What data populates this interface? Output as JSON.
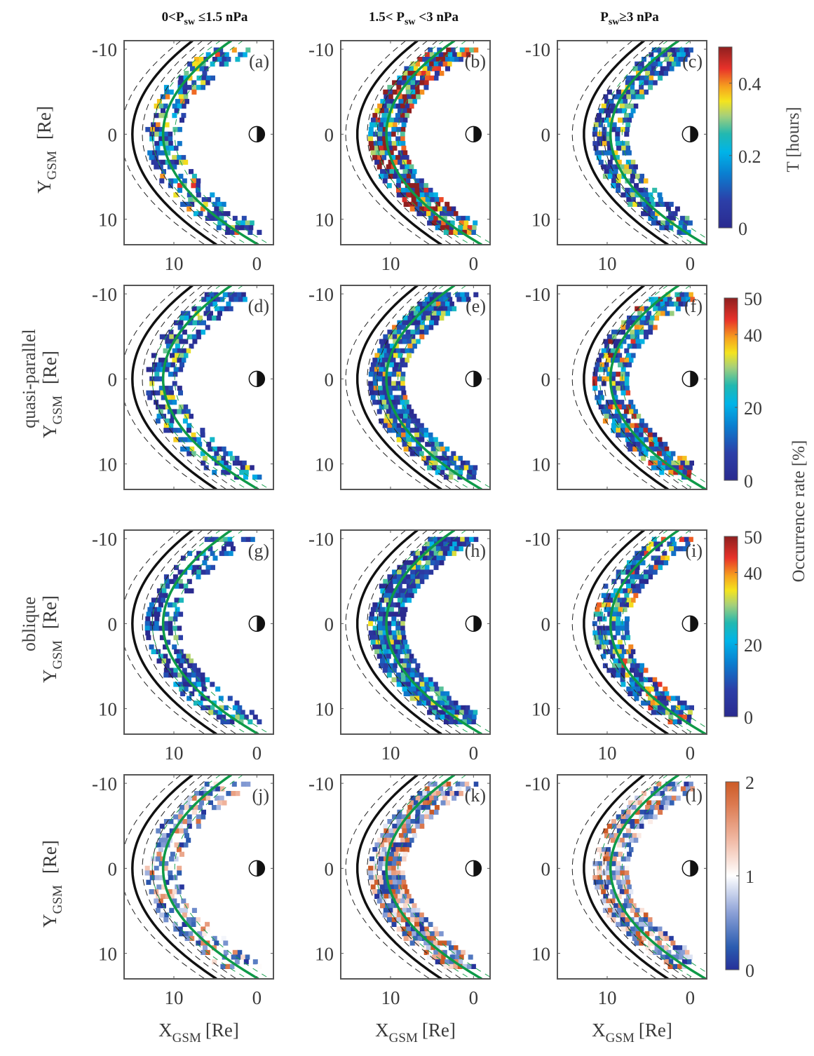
{
  "chart_data": {
    "type": "heatmap",
    "title": "",
    "column_titles": [
      "0<P_sw ≤1.5 nPa",
      "1.5< P_sw <3 nPa",
      "P_sw≥3 nPa"
    ],
    "row_labels": [
      "",
      "quasi-parallel",
      "oblique",
      ""
    ],
    "xlabel": "X_GSM [Re]",
    "ylabel": "Y_GSM [Re]",
    "xlim": [
      16,
      -2
    ],
    "ylim": [
      -11,
      13
    ],
    "xticks": [
      10,
      0
    ],
    "yticks": [
      -10,
      0,
      10
    ],
    "grid": false,
    "panel_letters": [
      "(a)",
      "(b)",
      "(c)",
      "(d)",
      "(e)",
      "(f)",
      "(g)",
      "(h)",
      "(i)",
      "(j)",
      "(k)",
      "(l)"
    ],
    "colorbars": [
      {
        "row": 0,
        "label": "T [hours]",
        "range": [
          0,
          0.5
        ],
        "ticks": [
          0,
          0.2,
          0.4
        ],
        "colormap": "jet"
      },
      {
        "row": 1,
        "label": "Occurrence rate [%]",
        "range": [
          0,
          50
        ],
        "ticks": [
          0,
          20,
          40,
          50
        ],
        "colormap": "jet"
      },
      {
        "row": 2,
        "label": "",
        "range": [
          0,
          50
        ],
        "ticks": [
          0,
          20,
          40,
          50
        ],
        "colormap": "jet"
      },
      {
        "row": 3,
        "label": "",
        "range": [
          0,
          2
        ],
        "ticks": [
          0,
          1,
          2
        ],
        "colormap": "diverging-blue-white-orange"
      }
    ],
    "overlays": {
      "bow_shock_solid_black": "solid black curve (bow shock model)",
      "magnetopause_solid_green": "solid green curve (magnetopause model)",
      "dashed_black": "dashed black curves",
      "dashed_green": "dashed green curves",
      "earth_symbol": "half-filled circle at origin (X=0,Y=0)"
    },
    "panels": [
      {
        "id": "a",
        "row": 0,
        "col": 0,
        "bow_shock_nose_x": 15.0,
        "mp_nose_x": 11.3,
        "level": 0.22,
        "density": 0.55
      },
      {
        "id": "b",
        "row": 0,
        "col": 1,
        "bow_shock_nose_x": 14.0,
        "mp_nose_x": 10.5,
        "level": 0.38,
        "density": 0.85
      },
      {
        "id": "c",
        "row": 0,
        "col": 2,
        "bow_shock_nose_x": 12.8,
        "mp_nose_x": 9.6,
        "level": 0.16,
        "density": 0.75
      },
      {
        "id": "d",
        "row": 1,
        "col": 0,
        "bow_shock_nose_x": 15.0,
        "mp_nose_x": 11.3,
        "level": 14,
        "density": 0.55
      },
      {
        "id": "e",
        "row": 1,
        "col": 1,
        "bow_shock_nose_x": 14.0,
        "mp_nose_x": 10.5,
        "level": 19,
        "density": 0.85
      },
      {
        "id": "f",
        "row": 1,
        "col": 2,
        "bow_shock_nose_x": 12.8,
        "mp_nose_x": 9.6,
        "level": 28,
        "density": 0.75
      },
      {
        "id": "g",
        "row": 2,
        "col": 0,
        "bow_shock_nose_x": 15.0,
        "mp_nose_x": 11.3,
        "level": 10,
        "density": 0.55
      },
      {
        "id": "h",
        "row": 2,
        "col": 1,
        "bow_shock_nose_x": 14.0,
        "mp_nose_x": 10.5,
        "level": 14,
        "density": 0.85
      },
      {
        "id": "i",
        "row": 2,
        "col": 2,
        "bow_shock_nose_x": 12.8,
        "mp_nose_x": 9.6,
        "level": 22,
        "density": 0.75
      },
      {
        "id": "j",
        "row": 3,
        "col": 0,
        "bow_shock_nose_x": 15.0,
        "mp_nose_x": 11.3,
        "level": 1.05,
        "density": 0.55
      },
      {
        "id": "k",
        "row": 3,
        "col": 1,
        "bow_shock_nose_x": 14.0,
        "mp_nose_x": 10.5,
        "level": 1.35,
        "density": 0.85
      },
      {
        "id": "l",
        "row": 3,
        "col": 2,
        "bow_shock_nose_x": 12.8,
        "mp_nose_x": 9.6,
        "level": 1.25,
        "density": 0.75
      }
    ]
  }
}
